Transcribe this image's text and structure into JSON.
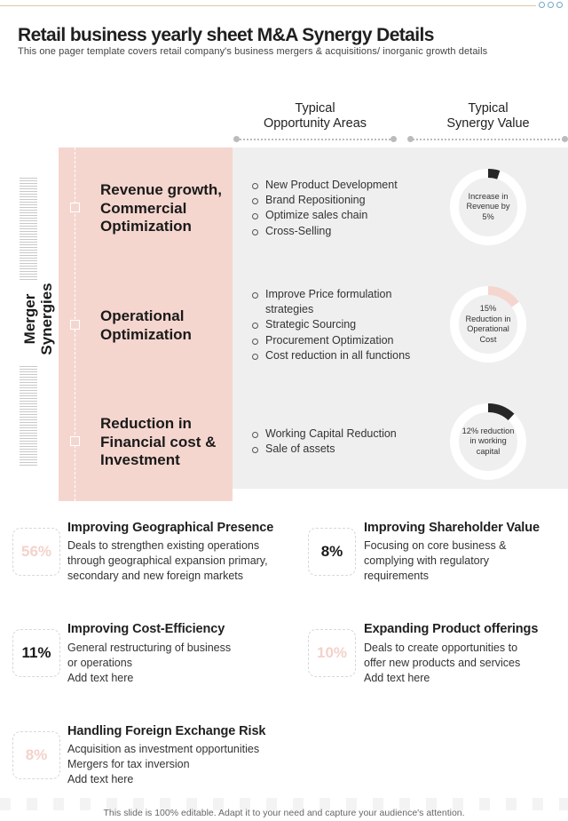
{
  "page": {
    "title": "Retail business yearly sheet M&A Synergy Details",
    "subtitle": "This one pager template covers retail company's business mergers & acquisitions/ inorganic growth details",
    "footer": "This slide is 100% editable. Adapt it to your need and capture your audience's attention."
  },
  "columns": {
    "opportunity_header": [
      "Typical",
      "Opportunity Areas"
    ],
    "synergy_header": [
      "Typical",
      "Synergy Value"
    ]
  },
  "side_label": [
    "Merger",
    "Synergies"
  ],
  "synergy_rows": [
    {
      "title": "Revenue growth, Commercial Optimization",
      "bullets": [
        "New Product Development",
        "Brand Repositioning",
        "Optimize sales chain",
        "Cross-Selling"
      ],
      "donut_text": "Increase in Revenue by 5%",
      "percent": 5,
      "color": "#262626"
    },
    {
      "title": "Operational Optimization",
      "bullets": [
        "Improve Price formulation strategies",
        "Strategic Sourcing",
        "Procurement  Optimization",
        "Cost reduction in all functions"
      ],
      "donut_text": "15% Reduction in Operational Cost",
      "percent": 15,
      "color": "#f5d6cf"
    },
    {
      "title": "Reduction in Financial cost & Investment",
      "bullets": [
        "Working Capital Reduction",
        "Sale of assets"
      ],
      "donut_text": "12% reduction in working capital",
      "percent": 12,
      "color": "#262626"
    }
  ],
  "stats": [
    {
      "value": "56%",
      "title": "Improving Geographical Presence",
      "lines": [
        "Deals to strengthen existing operations",
        "through geographical expansion primary,",
        "secondary and new foreign markets"
      ]
    },
    {
      "value": "8%",
      "title": "Improving Shareholder Value",
      "lines": [
        "Focusing on core business &",
        "complying with regulatory",
        "requirements"
      ]
    },
    {
      "value": "11%",
      "title": "Improving Cost-Efficiency",
      "lines": [
        "General restructuring of business",
        "or operations",
        "Add text here"
      ]
    },
    {
      "value": "10%",
      "title": "Expanding Product offerings",
      "lines": [
        "Deals to create opportunities to",
        "offer new products and services",
        "Add text here"
      ]
    },
    {
      "value": "8%",
      "title": "Handling Foreign Exchange Risk",
      "lines": [
        "Acquisition as investment opportunities",
        "Mergers for tax inversion",
        "Add text here"
      ]
    }
  ],
  "colors": {
    "pink": "#f5d6cf",
    "grey": "#efefef",
    "dark": "#262626",
    "track": "#ffffff"
  },
  "icons": [
    "circle-dots-icon"
  ]
}
